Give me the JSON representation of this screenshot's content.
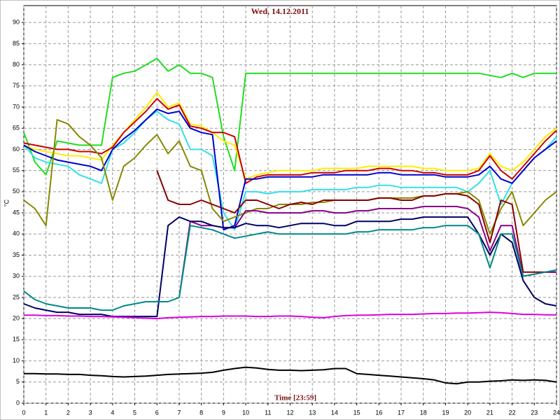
{
  "chart_data": {
    "type": "line",
    "title": "Wed, 14.12.2011",
    "x_label": "Time [23:59]",
    "y_label": "°C",
    "xlim": [
      0,
      24
    ],
    "ylim": [
      0,
      94
    ],
    "grid": true,
    "xticks": [
      0,
      1,
      2,
      3,
      4,
      5,
      6,
      7,
      8,
      9,
      10,
      11,
      12,
      13,
      14,
      15,
      16,
      17,
      18,
      19,
      20,
      21,
      22,
      23,
      24
    ],
    "yticks": [
      0,
      5,
      10,
      15,
      20,
      25,
      30,
      35,
      40,
      45,
      50,
      55,
      60,
      65,
      70,
      75,
      80,
      85,
      90
    ],
    "x": [
      0,
      0.5,
      1,
      1.5,
      2,
      2.5,
      3,
      3.5,
      4,
      4.5,
      5,
      5.5,
      6,
      6.5,
      7,
      7.5,
      8,
      8.5,
      9,
      9.5,
      10,
      10.5,
      11,
      11.5,
      12,
      12.5,
      13,
      13.5,
      14,
      14.5,
      15,
      15.5,
      16,
      16.5,
      17,
      17.5,
      18,
      18.5,
      19,
      19.5,
      20,
      20.5,
      21,
      21.5,
      22,
      22.5,
      23,
      23.5,
      24
    ],
    "series": [
      {
        "color": "#22dd22",
        "values": [
          64,
          57,
          54,
          62,
          61.5,
          61,
          61,
          61,
          77,
          78,
          78.5,
          80,
          81.5,
          78.5,
          80,
          78,
          78,
          77,
          63,
          55,
          78,
          78,
          78,
          78,
          78,
          78,
          78,
          78,
          78,
          78,
          78,
          78,
          78,
          78,
          78,
          78,
          78,
          78,
          78,
          78,
          78,
          78,
          77.5,
          77,
          78,
          77,
          78,
          78,
          78
        ]
      },
      {
        "color": "#ffee00",
        "values": [
          61,
          60,
          59.5,
          59,
          58.5,
          58.5,
          58,
          57.5,
          61,
          64,
          67,
          70,
          73.5,
          70,
          71,
          66,
          65.5,
          64,
          62,
          61,
          53,
          54,
          54.5,
          55,
          55,
          55,
          55,
          55.5,
          55.5,
          55.5,
          55.5,
          56,
          56,
          56,
          56,
          56,
          55.5,
          55.5,
          55,
          55,
          55,
          55.5,
          59,
          56,
          55,
          57,
          60,
          63,
          65
        ]
      },
      {
        "color": "#cc0000",
        "values": [
          61.5,
          61,
          60.5,
          60,
          60,
          59.5,
          59.5,
          59,
          60.5,
          64,
          66.5,
          69,
          72,
          69.5,
          70.5,
          65.5,
          65,
          64,
          64,
          63,
          52,
          53.5,
          54,
          54,
          54,
          54,
          54.5,
          54.5,
          54.5,
          55,
          55,
          55,
          55.5,
          55.5,
          55,
          55,
          54.5,
          54.5,
          54,
          54,
          54,
          55,
          58.5,
          55,
          53,
          56,
          59,
          62,
          64.5
        ]
      },
      {
        "color": "#33e0e8",
        "values": [
          61,
          58,
          57,
          56.5,
          56,
          54,
          53,
          52,
          60,
          61.5,
          64,
          67,
          69,
          67,
          66,
          60,
          60,
          58.5,
          45,
          41,
          50,
          50,
          49.5,
          50,
          50,
          50,
          50.5,
          50.5,
          50.5,
          50.5,
          51,
          51,
          51.5,
          51.5,
          51,
          51,
          51,
          51,
          51,
          51,
          50,
          52,
          55,
          47,
          52,
          55,
          58,
          60,
          63
        ]
      },
      {
        "color": "#0000cc",
        "values": [
          61,
          59.5,
          58.5,
          57.5,
          57,
          56.5,
          56,
          55,
          60,
          62.5,
          64.5,
          67,
          69.5,
          68.5,
          69,
          65,
          64,
          63.5,
          41,
          42,
          53,
          53,
          53.5,
          53.5,
          53.5,
          53.5,
          53.5,
          54,
          54,
          54,
          54,
          54,
          54.5,
          54.5,
          54,
          54,
          54,
          54,
          53.5,
          53.5,
          53.5,
          54,
          56,
          53,
          52,
          55,
          58,
          60,
          62
        ]
      },
      {
        "color": "#888800",
        "values": [
          48,
          46,
          42,
          67,
          66,
          63,
          61,
          58,
          48,
          56,
          58,
          61,
          63.5,
          59,
          62,
          56,
          55,
          46,
          43,
          44,
          45,
          46,
          46,
          47,
          47,
          47,
          47.5,
          47.5,
          48,
          48,
          48,
          48,
          48.5,
          48.5,
          48.5,
          48.5,
          49,
          49,
          49.5,
          49.5,
          50,
          48,
          40,
          46,
          50,
          42,
          45,
          48,
          50
        ]
      },
      {
        "color": "#880000",
        "values": [
          null,
          null,
          null,
          null,
          null,
          null,
          null,
          null,
          null,
          null,
          null,
          null,
          55,
          48,
          47,
          47,
          48,
          47,
          46,
          45,
          48,
          48,
          47,
          46,
          47,
          47.5,
          47,
          48,
          48,
          48,
          48,
          48,
          48.5,
          48.5,
          48,
          48,
          49,
          49,
          49.5,
          49.5,
          49,
          47,
          38,
          48,
          47,
          31,
          31,
          31,
          31
        ]
      },
      {
        "color": "#880088",
        "values": [
          null,
          null,
          null,
          null,
          null,
          null,
          null,
          null,
          null,
          null,
          null,
          null,
          null,
          null,
          25,
          43,
          42,
          42,
          41.5,
          41.5,
          45.5,
          45.5,
          45,
          45,
          45,
          45,
          45.5,
          45.5,
          45,
          45,
          45.5,
          45.5,
          46,
          46,
          46,
          46,
          46.5,
          46.5,
          46.5,
          46.5,
          46,
          44,
          36,
          42,
          42,
          30,
          30.5,
          31,
          31
        ]
      },
      {
        "color": "#000066",
        "values": [
          23.5,
          22.5,
          22,
          21.5,
          21.5,
          21,
          21,
          21,
          20.5,
          20.5,
          20.5,
          20.5,
          20.5,
          42,
          44,
          43,
          43,
          42,
          41.5,
          41.5,
          42.5,
          42,
          42,
          41.5,
          42,
          42.5,
          42.5,
          42.5,
          42,
          42,
          43,
          43,
          43,
          43,
          43.5,
          43.5,
          44,
          44,
          44,
          44,
          44,
          40,
          35,
          40,
          38,
          29,
          25,
          23.5,
          23
        ]
      },
      {
        "color": "#008888",
        "values": [
          26.5,
          24.5,
          23.5,
          23,
          22.5,
          22.5,
          22.5,
          22,
          22,
          23,
          23.5,
          24,
          24,
          24,
          25,
          42,
          41.5,
          41,
          40,
          39,
          39.5,
          40,
          40.5,
          40,
          40,
          40,
          40,
          40,
          40,
          40,
          40.5,
          40.5,
          41,
          41,
          41,
          41,
          41.5,
          41.5,
          42,
          42,
          42,
          40,
          32,
          40,
          40,
          30,
          30.5,
          31,
          31.5
        ]
      },
      {
        "color": "#dd00dd",
        "values": [
          20.8,
          20.8,
          20.7,
          20.7,
          20.6,
          20.6,
          20.5,
          20.5,
          20.4,
          20.3,
          20.2,
          20.1,
          20,
          20.2,
          20.3,
          20.4,
          20.5,
          20.5,
          20.6,
          20.6,
          20.6,
          20.5,
          20.5,
          20.6,
          20.6,
          20.5,
          20.3,
          20.2,
          20.5,
          20.7,
          20.8,
          20.8,
          20.9,
          21,
          21,
          21,
          21.1,
          21.2,
          21.2,
          21.3,
          21.3,
          21.4,
          21.5,
          21.4,
          21.2,
          21,
          21,
          20.9,
          20.9
        ]
      },
      {
        "color": "#000000",
        "values": [
          7,
          7,
          6.9,
          6.9,
          6.8,
          6.8,
          6.6,
          6.5,
          6.3,
          6.2,
          6.3,
          6.4,
          6.6,
          6.8,
          6.9,
          7,
          7.1,
          7.3,
          7.8,
          8.2,
          8.5,
          8.3,
          8,
          7.8,
          7.8,
          7.7,
          7.8,
          7.9,
          8.2,
          8.2,
          7,
          6.8,
          6.6,
          6.4,
          6.2,
          6,
          5.8,
          5.5,
          4.8,
          4.6,
          5,
          5,
          5.2,
          5.3,
          5.5,
          5.4,
          5.5,
          5.4,
          5
        ]
      }
    ]
  }
}
